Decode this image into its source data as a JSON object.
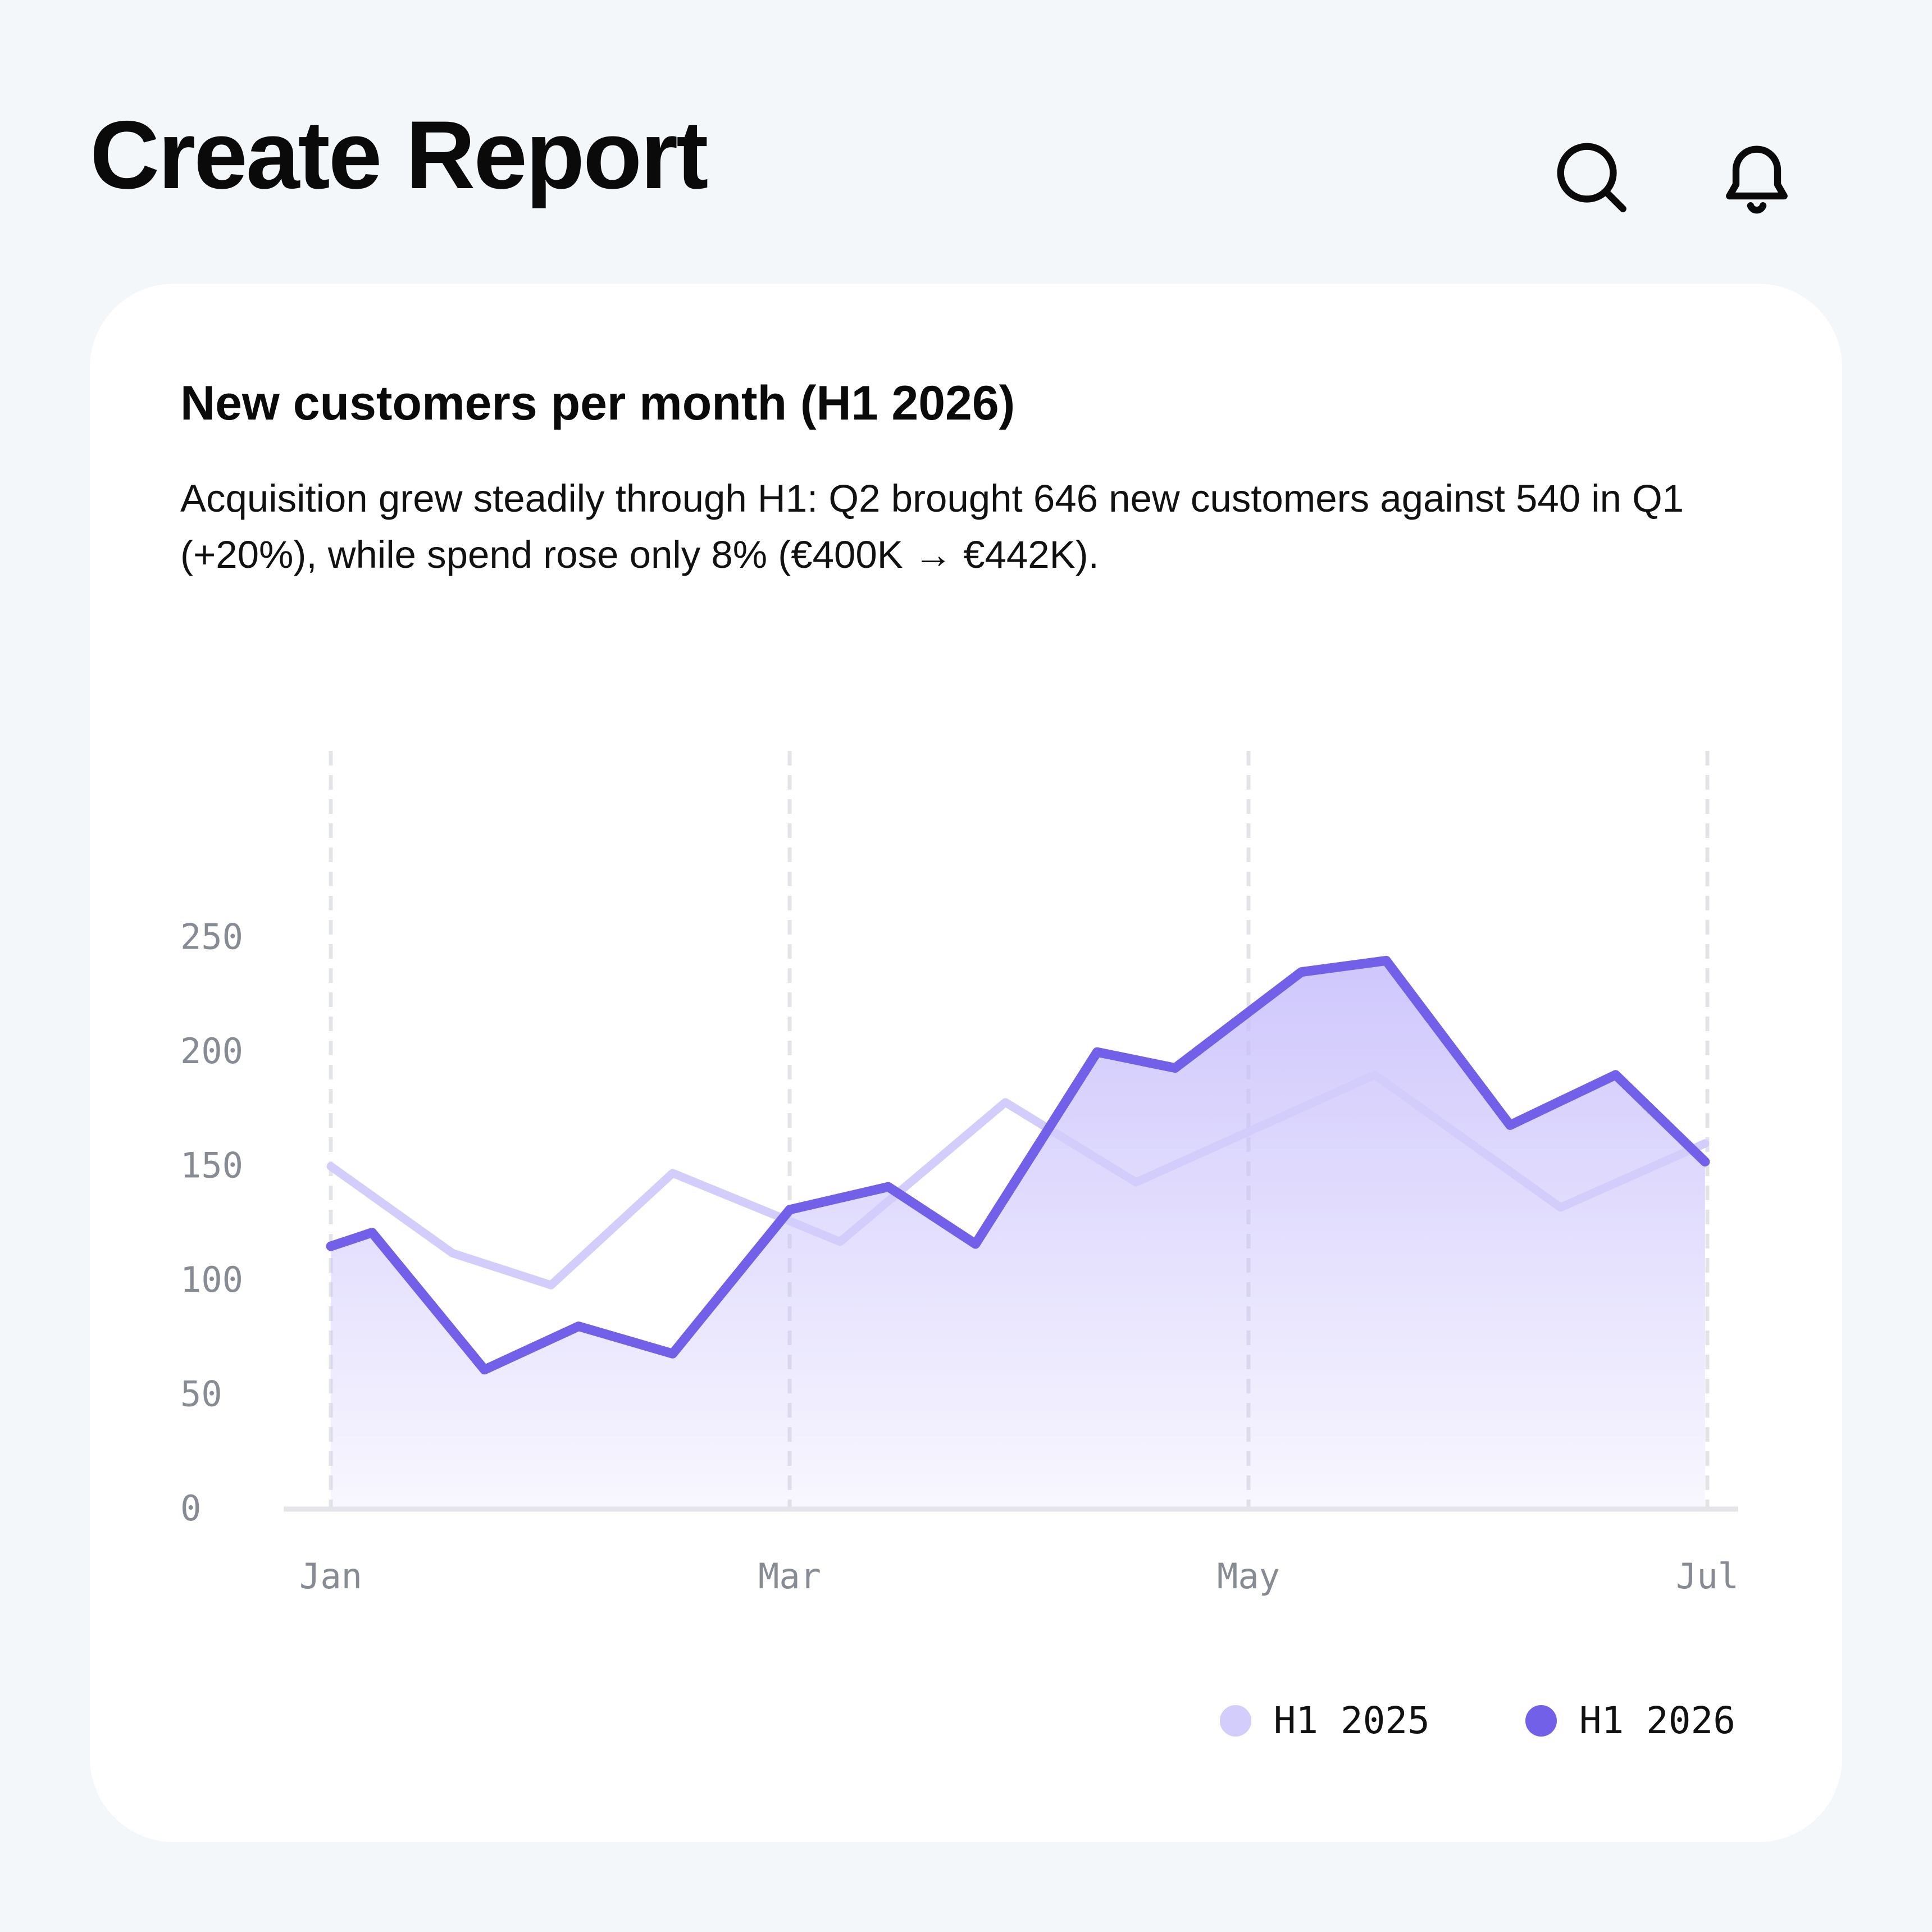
{
  "header": {
    "title": "Create Report",
    "search_icon": "search-icon",
    "notifications_icon": "bell-icon"
  },
  "card": {
    "title": "New customers per month (H1 2026)",
    "description": "Acquisition grew steadily through H1: Q2 brought 646 new customers against 540 in Q1 (+20%), while spend rose only 8% (€400K → €442K)."
  },
  "chart_data": {
    "type": "area",
    "title": "New customers per month (H1 2026)",
    "xlabel": "",
    "ylabel": "",
    "x_ticks": [
      "Jan",
      "Mar",
      "May",
      "Jul"
    ],
    "x_tick_positions": [
      1,
      3,
      5,
      7
    ],
    "xlim": [
      1,
      7
    ],
    "y_ticks": [
      0,
      50,
      100,
      150,
      200,
      250
    ],
    "ylim": [
      0,
      260
    ],
    "grid": "vertical dashed at x ticks",
    "legend_position": "bottom-right",
    "series": [
      {
        "name": "H1 2025",
        "color": "#d3cdfb",
        "filled": false,
        "x": [
          1.0,
          1.53,
          1.96,
          2.49,
          3.22,
          3.94,
          4.51,
          5.55,
          6.36,
          6.99
        ],
        "y": [
          150,
          112,
          98,
          147,
          117,
          178,
          143,
          190,
          132,
          160
        ]
      },
      {
        "name": "H1 2026",
        "color": "#7360e8",
        "filled": true,
        "x": [
          1.0,
          1.18,
          1.67,
          2.08,
          2.49,
          3.0,
          3.43,
          3.81,
          4.34,
          4.68,
          5.23,
          5.6,
          6.14,
          6.6,
          6.99
        ],
        "y": [
          115,
          121,
          61,
          80,
          68,
          131,
          141,
          116,
          200,
          193,
          235,
          240,
          168,
          190,
          152
        ]
      }
    ]
  },
  "legend": {
    "items": [
      {
        "label": "H1 2025",
        "color": "#d3cdfb"
      },
      {
        "label": "H1 2026",
        "color": "#7360e8"
      }
    ]
  }
}
